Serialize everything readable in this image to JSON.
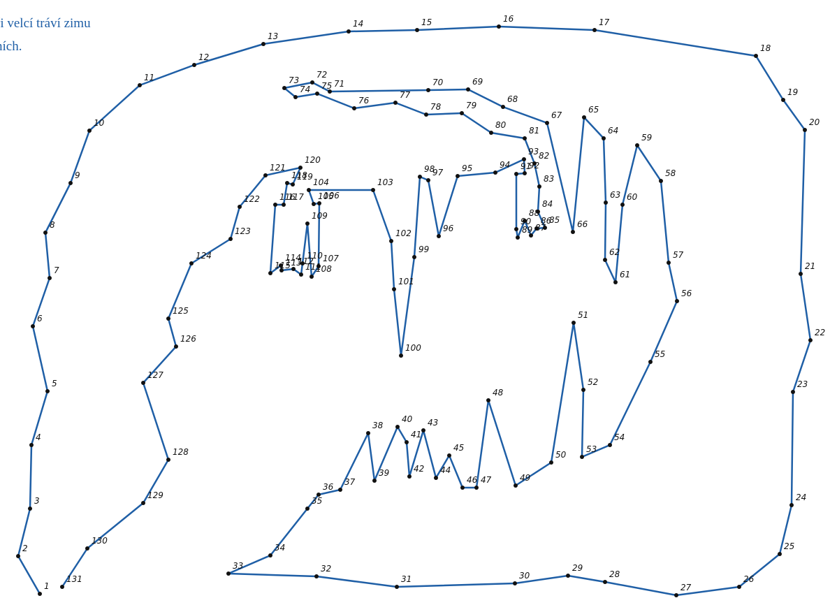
{
  "caption": [
    "ři velcí tráví zimu",
    "ních."
  ],
  "points": [
    1,
    2,
    3,
    4,
    5,
    6,
    7,
    8,
    9,
    10,
    11,
    12,
    13,
    14,
    15,
    16,
    17,
    18,
    19,
    20,
    21,
    22,
    23,
    24,
    25,
    26,
    27,
    28,
    29,
    30,
    31,
    32,
    33,
    34,
    35,
    36,
    37,
    38,
    39,
    40,
    41,
    42,
    43,
    44,
    45,
    46,
    47,
    48,
    49,
    50,
    51,
    52,
    53,
    54,
    55,
    56,
    57,
    58,
    59,
    60,
    61,
    62,
    63,
    64,
    65,
    66,
    67,
    68,
    69,
    70,
    71,
    72,
    73,
    74,
    75,
    76,
    77,
    78,
    79,
    80,
    81,
    82,
    83,
    84,
    85,
    86,
    87,
    88,
    89,
    90,
    91,
    92,
    93,
    94,
    95,
    96,
    97,
    98,
    99,
    100,
    101,
    102,
    103,
    104,
    105,
    106,
    107,
    108,
    109,
    110,
    111,
    112,
    113,
    114,
    115,
    116,
    117,
    118,
    119,
    120,
    121,
    122,
    123,
    124,
    125,
    126,
    127,
    128,
    129,
    130,
    131
  ]
}
